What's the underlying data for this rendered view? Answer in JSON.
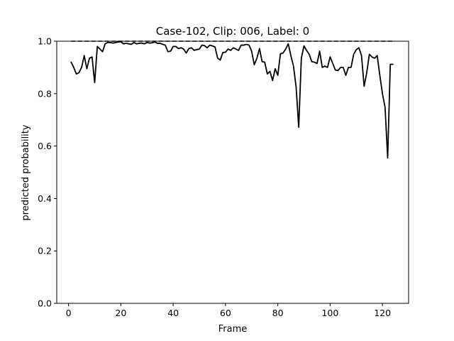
{
  "chart_data": {
    "type": "line",
    "title": "Case-102, Clip: 006, Label: 0",
    "xlabel": "Frame",
    "ylabel": "predicted probability",
    "xlim": [
      -4.5,
      130
    ],
    "ylim": [
      0,
      1
    ],
    "xticks": [
      0,
      20,
      40,
      60,
      80,
      100,
      120
    ],
    "yticks": [
      0.0,
      0.2,
      0.4,
      0.6,
      0.8,
      1.0
    ],
    "ytick_labels": [
      "0.0",
      "0.2",
      "0.4",
      "0.6",
      "0.8",
      "1.0"
    ],
    "grid": false,
    "reference_line": {
      "y": 1.0,
      "x_range": [
        1,
        124
      ],
      "style": "dashed",
      "color": "#000000"
    },
    "series": [
      {
        "color": "#000000",
        "x": [
          1,
          2,
          3,
          4,
          5,
          6,
          7,
          8,
          9,
          10,
          11,
          12,
          13,
          14,
          15,
          16,
          17,
          18,
          19,
          20,
          21,
          22,
          23,
          24,
          25,
          26,
          27,
          28,
          29,
          30,
          31,
          32,
          33,
          34,
          35,
          36,
          37,
          38,
          39,
          40,
          41,
          42,
          43,
          44,
          45,
          46,
          47,
          48,
          49,
          50,
          51,
          52,
          53,
          54,
          55,
          56,
          57,
          58,
          59,
          60,
          61,
          62,
          63,
          64,
          65,
          66,
          67,
          68,
          69,
          70,
          71,
          72,
          73,
          74,
          75,
          76,
          77,
          78,
          79,
          80,
          81,
          82,
          83,
          84,
          85,
          86,
          87,
          88,
          89,
          90,
          91,
          92,
          93,
          94,
          95,
          96,
          97,
          98,
          99,
          100,
          101,
          102,
          103,
          104,
          105,
          106,
          107,
          108,
          109,
          110,
          111,
          112,
          113,
          114,
          115,
          116,
          117,
          118,
          119,
          120,
          121,
          122,
          123,
          124
        ],
        "y": [
          0.92,
          0.9,
          0.875,
          0.88,
          0.9,
          0.945,
          0.895,
          0.935,
          0.94,
          0.842,
          0.98,
          0.97,
          0.96,
          0.99,
          0.995,
          0.995,
          0.993,
          0.995,
          0.997,
          0.998,
          0.99,
          0.992,
          0.99,
          0.988,
          0.995,
          0.99,
          0.992,
          0.993,
          0.99,
          0.995,
          0.993,
          0.994,
          0.997,
          0.992,
          0.992,
          0.988,
          0.985,
          0.96,
          0.962,
          0.98,
          0.98,
          0.972,
          0.975,
          0.97,
          0.955,
          0.972,
          0.975,
          0.965,
          0.968,
          0.97,
          0.985,
          0.983,
          0.975,
          0.985,
          0.982,
          0.978,
          0.935,
          0.928,
          0.957,
          0.958,
          0.97,
          0.965,
          0.975,
          0.97,
          0.965,
          0.985,
          0.985,
          0.988,
          0.985,
          0.962,
          0.91,
          0.935,
          0.972,
          0.922,
          0.92,
          0.875,
          0.885,
          0.85,
          0.895,
          0.87,
          0.952,
          0.955,
          0.97,
          0.99,
          0.945,
          0.905,
          0.825,
          0.672,
          0.935,
          0.982,
          0.965,
          0.95,
          0.922,
          0.92,
          0.915,
          0.962,
          0.9,
          0.905,
          0.9,
          0.94,
          0.915,
          0.89,
          0.888,
          0.9,
          0.9,
          0.87,
          0.9,
          0.9,
          0.95,
          0.968,
          0.975,
          0.945,
          0.828,
          0.88,
          0.95,
          0.94,
          0.935,
          0.945,
          0.87,
          0.8,
          0.748,
          0.555,
          0.912,
          0.912
        ]
      }
    ]
  }
}
